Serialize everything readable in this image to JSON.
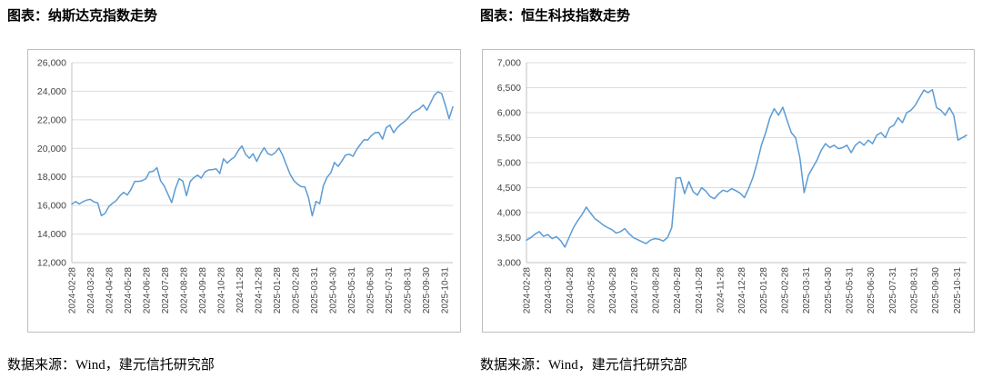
{
  "chart_data": [
    {
      "type": "line",
      "title": "图表：纳斯达克指数走势",
      "source": "数据来源：Wind，建元信托研究部",
      "line_color": "#5B9BD5",
      "grid": true,
      "legend_position": "none",
      "ylim": [
        12000,
        26000
      ],
      "y_step": 2000,
      "y_tick_labels": [
        "12,000",
        "14,000",
        "16,000",
        "18,000",
        "20,000",
        "22,000",
        "24,000",
        "26,000"
      ],
      "x_labels": [
        "2024-02-28",
        "2024-03-28",
        "2024-04-28",
        "2024-05-28",
        "2024-06-28",
        "2024-07-28",
        "2024-08-28",
        "2024-09-28",
        "2024-10-28",
        "2024-11-28",
        "2024-12-28",
        "2025-01-28",
        "2025-02-28",
        "2025-03-31",
        "2025-04-30",
        "2025-05-31",
        "2025-06-30",
        "2025-07-31",
        "2025-08-31",
        "2025-09-30",
        "2025-10-31"
      ],
      "series": [
        {
          "name": "纳斯达克指数",
          "values": [
            16091,
            16274,
            16103,
            16265,
            16379,
            16429,
            16248,
            16175,
            15282,
            15451,
            15928,
            16156,
            16341,
            16686,
            16921,
            16735,
            17133,
            17688,
            17689,
            17733,
            17879,
            18353,
            18398,
            18648,
            17727,
            17358,
            16776,
            16200,
            17187,
            17877,
            17714,
            16691,
            17684,
            17948,
            18119,
            17918,
            18343,
            18489,
            18519,
            18568,
            18240,
            19269,
            18966,
            19218,
            19404,
            19860,
            20174,
            19573,
            19311,
            19622,
            19088,
            19630,
            20053,
            19627,
            19523,
            19714,
            20027,
            19524,
            18847,
            18196,
            17754,
            17504,
            17323,
            17299,
            16551,
            15268,
            16286,
            16131,
            17383,
            17978,
            18285,
            19010,
            18737,
            19114,
            19530,
            19591,
            19447,
            19912,
            20273,
            20601,
            20585,
            20896,
            21108,
            21122,
            20650,
            21450,
            21623,
            21100,
            21456,
            21700,
            21886,
            22141,
            22484,
            22631,
            22780,
            23043,
            22670,
            23205,
            23725,
            23958,
            23835,
            23005,
            22078,
            22900
          ]
        }
      ]
    },
    {
      "type": "line",
      "title": "图表：恒生科技指数走势",
      "source": "数据来源：Wind，建元信托研究部",
      "line_color": "#5B9BD5",
      "grid": true,
      "legend_position": "none",
      "ylim": [
        3000,
        7000
      ],
      "y_step": 500,
      "y_tick_labels": [
        "3,000",
        "3,500",
        "4,000",
        "4,500",
        "5,000",
        "5,500",
        "6,000",
        "6,500",
        "7,000"
      ],
      "x_labels": [
        "2024-02-28",
        "2024-03-28",
        "2024-04-28",
        "2024-05-28",
        "2024-06-28",
        "2024-07-28",
        "2024-08-28",
        "2024-09-28",
        "2024-10-28",
        "2024-11-28",
        "2024-12-28",
        "2025-01-28",
        "2025-02-28",
        "2025-03-31",
        "2025-04-30",
        "2025-05-31",
        "2025-06-30",
        "2025-07-31",
        "2025-08-31",
        "2025-09-30",
        "2025-10-31"
      ],
      "series": [
        {
          "name": "恒生科技指数",
          "values": [
            3450,
            3500,
            3569,
            3620,
            3525,
            3560,
            3480,
            3520,
            3440,
            3310,
            3510,
            3700,
            3840,
            3960,
            4110,
            3990,
            3880,
            3820,
            3750,
            3700,
            3660,
            3590,
            3620,
            3680,
            3580,
            3500,
            3460,
            3420,
            3380,
            3450,
            3480,
            3470,
            3430,
            3500,
            3700,
            4690,
            4700,
            4380,
            4620,
            4420,
            4350,
            4500,
            4430,
            4320,
            4280,
            4380,
            4450,
            4420,
            4480,
            4440,
            4390,
            4300,
            4480,
            4700,
            5000,
            5350,
            5600,
            5900,
            6080,
            5950,
            6110,
            5850,
            5600,
            5500,
            5100,
            4400,
            4750,
            4900,
            5050,
            5250,
            5380,
            5300,
            5350,
            5280,
            5300,
            5350,
            5200,
            5350,
            5420,
            5350,
            5450,
            5380,
            5550,
            5600,
            5500,
            5700,
            5750,
            5900,
            5800,
            6000,
            6050,
            6150,
            6300,
            6450,
            6400,
            6460,
            6100,
            6050,
            5950,
            6100,
            5950,
            5450,
            5500,
            5550
          ]
        }
      ]
    }
  ],
  "style": {
    "grid_color": "#dcdcdc",
    "axis_color": "#c0c0c0",
    "tick_text_color": "#444444",
    "frame_color": "#bfbfbf"
  }
}
